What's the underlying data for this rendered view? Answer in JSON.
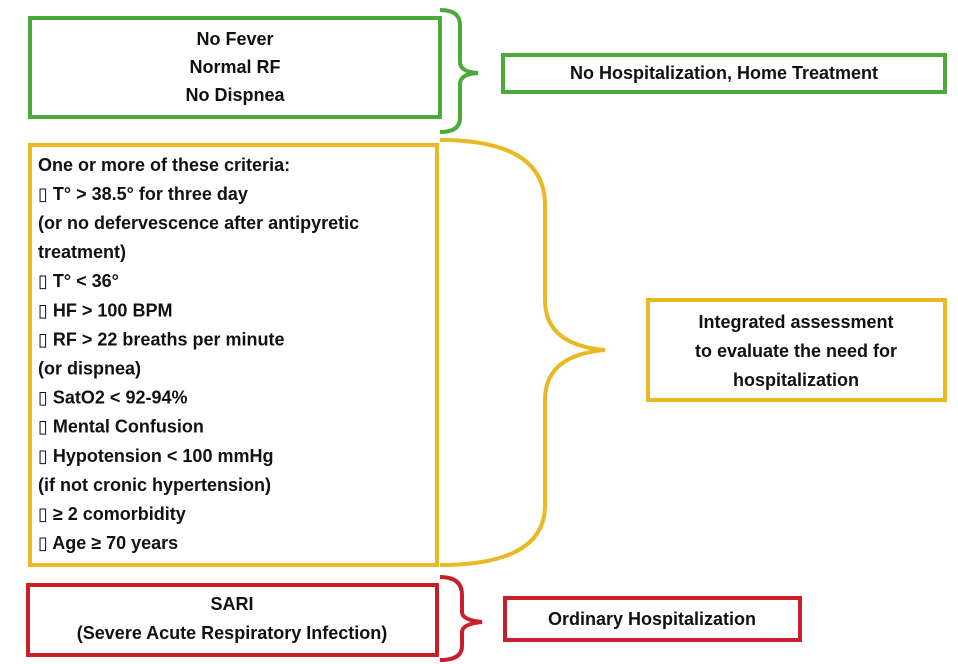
{
  "nodes": [
    {
      "lines": [
        "No Fever",
        "Normal RF",
        "No Dispnea"
      ]
    },
    {
      "lines": [
        "One or more of these criteria:",
        "▯  T° > 38.5° for three day",
        "(or no defervescence after antipyretic",
        "treatment)",
        "▯  T° < 36°",
        "▯  HF > 100 BPM",
        "▯  RF > 22 breaths per minute",
        "(or dispnea)",
        "▯  SatO2 < 92-94%",
        "▯  Mental Confusion",
        "▯  Hypotension < 100 mmHg",
        "(if not cronic hypertension)",
        "▯  ≥ 2 comorbidity",
        "▯  Age ≥  70 years"
      ]
    },
    {
      "lines": [
        "SARI",
        "(Severe Acute Respiratory Infection)"
      ]
    }
  ],
  "outcomes": [
    {
      "lines": [
        "No Hospitalization, Home Treatment"
      ]
    },
    {
      "lines": [
        "Integrated assessment",
        "to evaluate the need for",
        "hospitalization"
      ]
    },
    {
      "lines": [
        "Ordinary Hospitalization"
      ]
    }
  ]
}
